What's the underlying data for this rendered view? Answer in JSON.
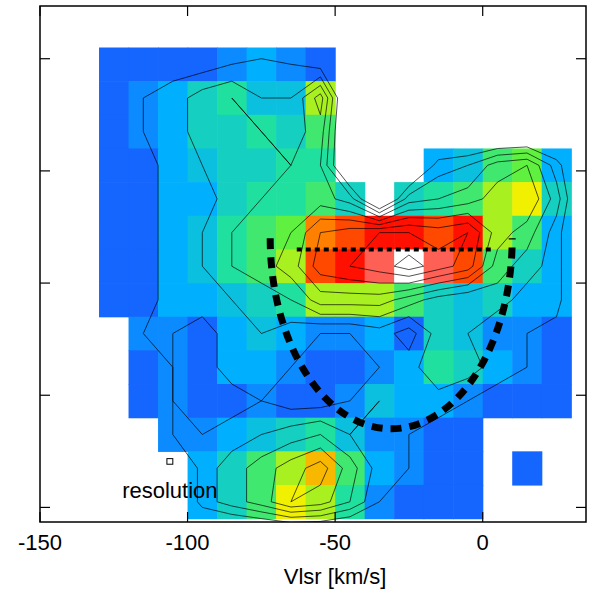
{
  "chart_data": {
    "type": "heatmap",
    "x_label": "Vlsr [km/s]",
    "xlim": [
      -150,
      35
    ],
    "ylim": [
      -0.13,
      4.47
    ],
    "xticks": [
      -150,
      -100,
      -50,
      0
    ],
    "yticks": [
      0,
      1,
      2,
      3,
      4
    ],
    "tick_labels": "x",
    "zlim": [
      0,
      10
    ],
    "x": [
      -125,
      -115,
      -105,
      -95,
      -85,
      -75,
      -65,
      -55,
      -45,
      -35,
      -25,
      -15,
      -5,
      5,
      15,
      25
    ],
    "y": [
      4.25,
      3.95,
      3.65,
      3.35,
      3.05,
      2.75,
      2.45,
      2.15,
      1.85,
      1.55,
      1.25,
      0.95,
      0.65,
      0.35,
      0.05
    ],
    "values": [
      [
        null,
        null,
        null,
        null,
        null,
        null,
        null,
        null,
        null,
        null,
        null,
        null,
        null,
        null,
        null,
        null
      ],
      [
        2,
        2,
        2,
        2,
        2.5,
        3,
        2.5,
        2,
        null,
        null,
        null,
        null,
        null,
        null,
        null,
        null
      ],
      [
        2,
        2.5,
        3,
        4,
        4.5,
        3.5,
        3.5,
        6,
        null,
        null,
        null,
        null,
        null,
        null,
        null,
        null
      ],
      [
        2,
        2.5,
        3,
        4,
        4,
        4.5,
        4,
        5,
        null,
        null,
        null,
        null,
        null,
        null,
        null,
        null
      ],
      [
        2,
        2,
        3,
        3.5,
        4,
        4,
        4.5,
        4.5,
        null,
        null,
        null,
        3,
        3.5,
        5,
        5.5,
        3
      ],
      [
        2,
        2,
        3,
        3,
        4,
        4.5,
        4.5,
        5,
        4,
        null,
        4,
        4.5,
        5,
        6,
        6.5,
        4
      ],
      [
        2,
        2,
        3,
        3.5,
        4.5,
        5,
        5.5,
        7.5,
        8,
        8.5,
        8.5,
        8,
        8.5,
        6,
        5,
        3
      ],
      [
        2,
        2,
        3,
        3.5,
        4.5,
        5,
        6,
        8,
        8.5,
        9,
        10,
        9,
        8,
        5,
        4,
        3
      ],
      [
        2,
        2,
        3,
        3,
        3.5,
        4,
        4.5,
        6,
        6,
        6,
        5,
        4,
        3.5,
        4,
        3,
        3
      ],
      [
        null,
        2.5,
        2.5,
        2,
        3,
        3.5,
        3,
        2.5,
        2.5,
        3,
        2,
        4,
        3.5,
        2.5,
        2.5,
        2
      ],
      [
        null,
        2,
        2.5,
        2,
        3,
        3,
        2.5,
        2,
        2,
        2.5,
        3,
        4.5,
        4,
        3,
        2.5,
        2
      ],
      [
        null,
        2,
        2.5,
        2,
        2,
        2.5,
        2,
        2,
        2.5,
        3.5,
        3,
        3,
        2.5,
        2,
        2,
        2
      ],
      [
        null,
        null,
        2.5,
        2.5,
        3,
        3.5,
        4,
        4.5,
        3.5,
        2.5,
        2.5,
        2,
        2,
        null,
        null,
        null
      ],
      [
        null,
        null,
        null,
        3,
        4,
        5,
        6,
        7,
        5,
        3,
        2.5,
        2,
        2,
        null,
        2,
        null
      ],
      [
        null,
        null,
        null,
        3,
        4,
        5,
        6.5,
        6,
        4.5,
        2.5,
        2,
        2,
        2,
        null,
        null,
        null
      ]
    ],
    "contour_levels": [
      2.5,
      3.5,
      4.5,
      5.5,
      6.5,
      7.5,
      8.5,
      9.5
    ],
    "arc": {
      "x_center": -31,
      "x_radius": 41,
      "y_center": 2.4,
      "y_radius": 1.7
    },
    "line": {
      "x": [
        -63,
        4
      ],
      "y": 2.3
    },
    "resolution": {
      "label": "resolution",
      "x": -106,
      "y": 0.41,
      "dx": 2,
      "dy": 0.05
    }
  }
}
